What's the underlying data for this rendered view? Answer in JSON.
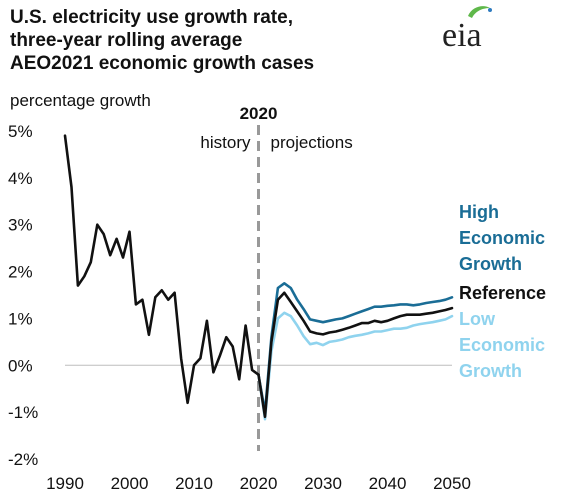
{
  "title_lines": [
    "U.S. electricity use growth rate,",
    "three-year rolling average",
    "AEO2021 economic growth cases"
  ],
  "units": "percentage growth",
  "logo_text": "eia",
  "colors": {
    "history": "#111111",
    "reference": "#111111",
    "high": "#1a6d96",
    "low": "#8fd3ee",
    "divider": "#999999",
    "logo": "#222222"
  },
  "chart_data": {
    "type": "line",
    "xlim": [
      1990,
      2050
    ],
    "ylim": [
      -2,
      5
    ],
    "x_ticks": [
      "1990",
      "2000",
      "2010",
      "2020",
      "2030",
      "2040",
      "2050"
    ],
    "y_ticks": [
      "5%",
      "4%",
      "3%",
      "2%",
      "1%",
      "0%",
      "-1%",
      "-2%"
    ],
    "divider": {
      "x": 2020,
      "label": "2020",
      "left_label": "history",
      "right_label": "projections"
    },
    "series": [
      {
        "name": "history",
        "color": "#111111",
        "x": [
          1990,
          1991,
          1992,
          1993,
          1994,
          1995,
          1996,
          1997,
          1998,
          1999,
          2000,
          2001,
          2002,
          2003,
          2004,
          2005,
          2006,
          2007,
          2008,
          2009,
          2010,
          2011,
          2012,
          2013,
          2014,
          2015,
          2016,
          2017,
          2018,
          2019,
          2020
        ],
        "y": [
          4.9,
          3.8,
          1.7,
          1.9,
          2.2,
          3.0,
          2.8,
          2.35,
          2.7,
          2.3,
          2.85,
          1.3,
          1.4,
          0.65,
          1.45,
          1.6,
          1.4,
          1.55,
          0.15,
          -0.8,
          0.0,
          0.15,
          0.95,
          -0.15,
          0.2,
          0.6,
          0.4,
          -0.3,
          0.85,
          -0.1,
          -0.2
        ]
      },
      {
        "name": "High Economic Growth",
        "color": "#1a6d96",
        "x": [
          2020,
          2021,
          2022,
          2023,
          2024,
          2025,
          2026,
          2027,
          2028,
          2029,
          2030,
          2031,
          2032,
          2033,
          2034,
          2035,
          2036,
          2037,
          2038,
          2039,
          2040,
          2041,
          2042,
          2043,
          2044,
          2045,
          2046,
          2047,
          2048,
          2049,
          2050
        ],
        "y": [
          -0.2,
          -1.0,
          0.6,
          1.65,
          1.75,
          1.65,
          1.4,
          1.2,
          0.98,
          0.95,
          0.92,
          0.95,
          0.98,
          1.0,
          1.05,
          1.1,
          1.15,
          1.2,
          1.25,
          1.25,
          1.27,
          1.28,
          1.3,
          1.3,
          1.28,
          1.3,
          1.33,
          1.35,
          1.37,
          1.4,
          1.45
        ]
      },
      {
        "name": "Reference",
        "color": "#111111",
        "x": [
          2020,
          2021,
          2022,
          2023,
          2024,
          2025,
          2026,
          2027,
          2028,
          2029,
          2030,
          2031,
          2032,
          2033,
          2034,
          2035,
          2036,
          2037,
          2038,
          2039,
          2040,
          2041,
          2042,
          2043,
          2044,
          2045,
          2046,
          2047,
          2048,
          2049,
          2050
        ],
        "y": [
          -0.2,
          -1.1,
          0.5,
          1.4,
          1.55,
          1.35,
          1.15,
          0.95,
          0.72,
          0.68,
          0.66,
          0.7,
          0.72,
          0.76,
          0.8,
          0.85,
          0.9,
          0.9,
          0.95,
          0.92,
          0.95,
          1.0,
          1.05,
          1.08,
          1.08,
          1.08,
          1.1,
          1.12,
          1.15,
          1.18,
          1.22
        ]
      },
      {
        "name": "Low Economic Growth",
        "color": "#8fd3ee",
        "x": [
          2020,
          2021,
          2022,
          2023,
          2024,
          2025,
          2026,
          2027,
          2028,
          2029,
          2030,
          2031,
          2032,
          2033,
          2034,
          2035,
          2036,
          2037,
          2038,
          2039,
          2040,
          2041,
          2042,
          2043,
          2044,
          2045,
          2046,
          2047,
          2048,
          2049,
          2050
        ],
        "y": [
          -0.2,
          -1.15,
          0.3,
          1.0,
          1.12,
          1.05,
          0.85,
          0.62,
          0.45,
          0.48,
          0.43,
          0.5,
          0.52,
          0.55,
          0.6,
          0.63,
          0.65,
          0.68,
          0.72,
          0.72,
          0.75,
          0.78,
          0.78,
          0.8,
          0.85,
          0.88,
          0.9,
          0.92,
          0.95,
          0.98,
          1.05
        ]
      }
    ],
    "series_labels": [
      {
        "series": "High Economic Growth",
        "lines": [
          "High",
          "Economic",
          "Growth"
        ]
      },
      {
        "series": "Reference",
        "lines": [
          "Reference"
        ]
      },
      {
        "series": "Low Economic Growth",
        "lines": [
          "Low",
          "Economic",
          "Growth"
        ]
      }
    ]
  }
}
